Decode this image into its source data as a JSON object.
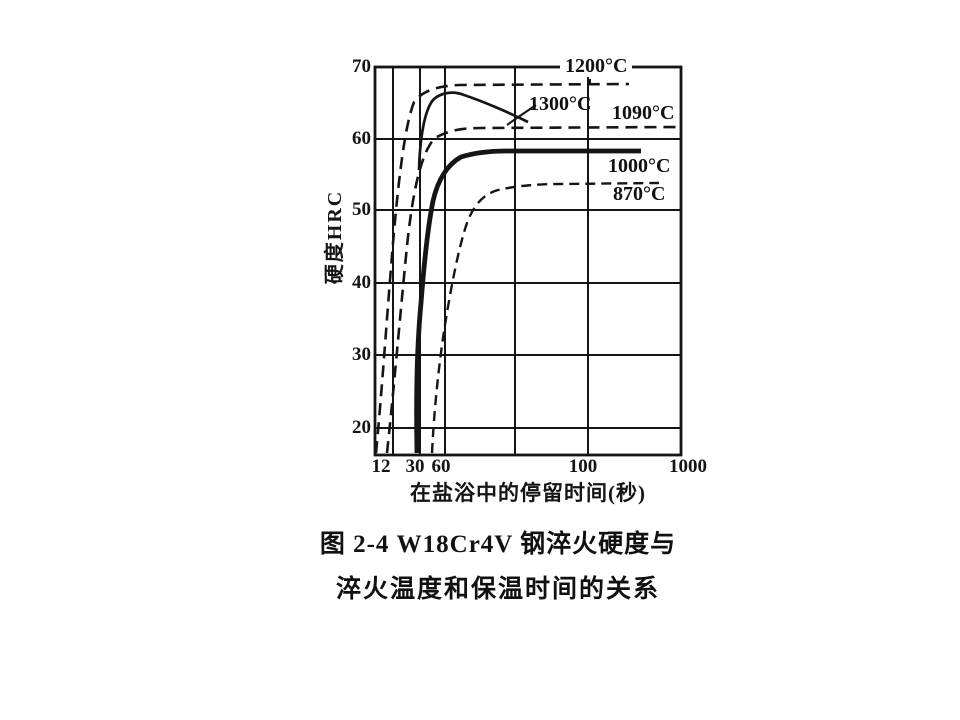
{
  "figure": {
    "caption_line1": "图 2-4  W18Cr4V 钢淬火硬度与",
    "caption_line2": "淬火温度和保温时间的关系"
  },
  "colors": {
    "ink": "#151515",
    "background": "#ffffff"
  },
  "chart_data": {
    "type": "line",
    "title": "",
    "xlabel": "在盐浴中的停留时间(秒)",
    "ylabel": "硬度HRC",
    "x_scale": "log",
    "grid": true,
    "legend_position": "labels-on-curves",
    "x_tick_labels": [
      "12",
      "30",
      "60",
      "100",
      "1000"
    ],
    "y_tick_labels": [
      "70",
      "60",
      "50",
      "40",
      "30",
      "20"
    ],
    "ylim": [
      18,
      70
    ],
    "series": [
      {
        "name": "1200°C",
        "line_style": "dashed",
        "points": [
          [
            10,
            20
          ],
          [
            12,
            50
          ],
          [
            20,
            63
          ],
          [
            30,
            66.5
          ],
          [
            60,
            67.5
          ],
          [
            200,
            67.5
          ]
        ]
      },
      {
        "name": "1300°C",
        "line_style": "solid",
        "points": [
          [
            30,
            55
          ],
          [
            45,
            64
          ],
          [
            60,
            66
          ],
          [
            75,
            65.5
          ],
          [
            90,
            63.5
          ],
          [
            100,
            62
          ]
        ]
      },
      {
        "name": "1090°C",
        "line_style": "dashed",
        "points": [
          [
            11,
            20
          ],
          [
            20,
            50
          ],
          [
            30,
            57
          ],
          [
            60,
            61
          ],
          [
            1000,
            61
          ]
        ]
      },
      {
        "name": "1000°C",
        "line_style": "solid-thick",
        "points": [
          [
            28,
            18
          ],
          [
            30,
            32
          ],
          [
            40,
            50
          ],
          [
            60,
            56
          ],
          [
            100,
            58
          ],
          [
            500,
            58
          ]
        ]
      },
      {
        "name": "870°C",
        "line_style": "dashed",
        "points": [
          [
            45,
            18
          ],
          [
            60,
            40
          ],
          [
            80,
            50
          ],
          [
            100,
            52
          ],
          [
            200,
            53.5
          ],
          [
            700,
            53.5
          ]
        ]
      }
    ]
  }
}
